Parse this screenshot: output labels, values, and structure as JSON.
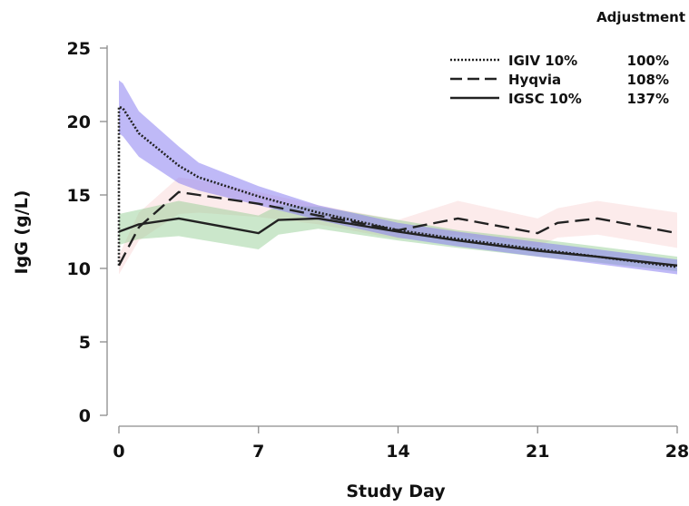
{
  "chart_data": {
    "type": "line",
    "title": "",
    "xlabel": "Study Day",
    "ylabel": "IgG (g/L)",
    "xlim": [
      0,
      28
    ],
    "ylim": [
      0,
      25
    ],
    "x_ticks": [
      "0",
      "7",
      "14",
      "21",
      "28"
    ],
    "y_ticks": [
      "0",
      "5",
      "10",
      "15",
      "20",
      "25"
    ],
    "grid": false,
    "legend_position": "top-right",
    "legend_title": "Adjustment",
    "series": [
      {
        "name": "IGIV 10%",
        "adjustment": "100%",
        "line_style": "dotted",
        "band_color": "#8a80f0",
        "band_opacity": 0.55,
        "x": [
          0,
          0,
          0.2,
          1,
          3,
          4,
          7,
          10,
          14,
          17,
          21,
          24,
          28
        ],
        "values": [
          10.2,
          21.0,
          20.9,
          19.2,
          17.0,
          16.2,
          14.9,
          13.8,
          12.6,
          12.0,
          11.3,
          10.8,
          10.1
        ],
        "band_lower": [
          9.6,
          19.2,
          19.0,
          17.6,
          15.8,
          15.3,
          14.3,
          13.3,
          12.1,
          11.5,
          10.8,
          10.3,
          9.6
        ],
        "band_upper": [
          10.9,
          22.8,
          22.6,
          20.7,
          18.3,
          17.2,
          15.6,
          14.3,
          13.1,
          12.5,
          11.8,
          11.3,
          10.6
        ]
      },
      {
        "name": "Hyqvia",
        "adjustment": "108%",
        "line_style": "dashed",
        "band_color": "#f7c6c6",
        "band_opacity": 0.35,
        "x": [
          0,
          1,
          3,
          4,
          7,
          10,
          14,
          17,
          21,
          22,
          24,
          28
        ],
        "values": [
          10.2,
          12.8,
          15.2,
          15.0,
          14.4,
          13.6,
          12.6,
          13.4,
          12.4,
          13.1,
          13.4,
          12.4
        ],
        "band_lower": [
          9.6,
          11.9,
          13.7,
          13.8,
          13.5,
          13.0,
          12.0,
          12.3,
          11.5,
          12.1,
          12.3,
          11.4
        ],
        "band_upper": [
          10.9,
          13.8,
          16.2,
          16.0,
          15.2,
          14.3,
          13.3,
          14.6,
          13.4,
          14.1,
          14.6,
          13.8
        ]
      },
      {
        "name": "IGSC 10%",
        "adjustment": "137%",
        "line_style": "solid",
        "band_color": "#8bc98b",
        "band_opacity": 0.45,
        "x": [
          0,
          1,
          3,
          7,
          8,
          10,
          14,
          17,
          21,
          24,
          28
        ],
        "values": [
          12.5,
          13.0,
          13.4,
          12.4,
          13.3,
          13.4,
          12.5,
          11.9,
          11.2,
          10.8,
          10.2
        ],
        "band_lower": [
          11.6,
          12.0,
          12.2,
          11.3,
          12.3,
          12.7,
          11.9,
          11.4,
          10.8,
          10.4,
          9.8
        ],
        "band_upper": [
          13.7,
          14.0,
          14.6,
          13.6,
          14.3,
          14.2,
          13.3,
          12.6,
          12.0,
          11.5,
          10.8
        ]
      }
    ]
  }
}
